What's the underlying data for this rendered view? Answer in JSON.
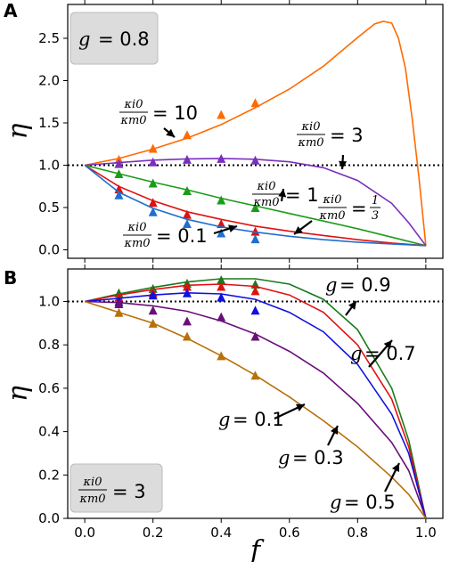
{
  "panel_a": {
    "letter": "A",
    "legend_box": {
      "g_symbol": "g",
      "equals": "=",
      "value": "0.8"
    }
  },
  "panel_b": {
    "letter": "B",
    "legend_box": {
      "ratio_num": "κi0",
      "ratio_den": "κm0",
      "equals": "=",
      "value": "3"
    }
  },
  "chart_data": [
    {
      "type": "line",
      "panel": "A",
      "xlabel": "",
      "ylabel": "η",
      "xlim": [
        -0.05,
        1.05
      ],
      "ylim": [
        -0.1,
        2.9
      ],
      "xticks": [
        0.0,
        0.2,
        0.4,
        0.6,
        0.8,
        1.0
      ],
      "yticks": [
        0.0,
        0.5,
        1.0,
        1.5,
        2.0,
        2.5
      ],
      "yticklabels": [
        "0.0",
        "0.5",
        "1.0",
        "1.5",
        "2.0",
        "2.5"
      ],
      "reference_line": {
        "y": 1.0,
        "style": "dotted"
      },
      "series": [
        {
          "name": "κi0/κm0 = 10",
          "color": "#ff6a00",
          "x": [
            0,
            0.1,
            0.2,
            0.3,
            0.4,
            0.5,
            0.6,
            0.7,
            0.8,
            0.85,
            0.875,
            0.9,
            0.92,
            0.94,
            0.96,
            0.98,
            1.0
          ],
          "y": [
            1.0,
            1.08,
            1.19,
            1.32,
            1.48,
            1.68,
            1.9,
            2.17,
            2.51,
            2.67,
            2.7,
            2.68,
            2.5,
            2.15,
            1.55,
            0.85,
            0.05
          ],
          "markers": {
            "x": [
              0.1,
              0.2,
              0.3,
              0.4,
              0.5
            ],
            "y": [
              1.07,
              1.2,
              1.36,
              1.6,
              1.74
            ]
          }
        },
        {
          "name": "κi0/κm0 = 3",
          "color": "#7b2fbe",
          "x": [
            0,
            0.1,
            0.2,
            0.3,
            0.4,
            0.5,
            0.6,
            0.7,
            0.8,
            0.9,
            0.95,
            1.0
          ],
          "y": [
            1.0,
            1.03,
            1.06,
            1.075,
            1.08,
            1.07,
            1.04,
            0.97,
            0.82,
            0.55,
            0.32,
            0.05
          ],
          "markers": {
            "x": [
              0.1,
              0.2,
              0.3,
              0.4,
              0.5
            ],
            "y": [
              1.02,
              1.04,
              1.07,
              1.08,
              1.06
            ]
          }
        },
        {
          "name": "κi0/κm0 = 1",
          "color": "#1a9c1a",
          "x": [
            0,
            0.1,
            0.2,
            0.3,
            0.4,
            0.5,
            0.6,
            0.7,
            0.8,
            0.9,
            1.0
          ],
          "y": [
            1.0,
            0.9,
            0.8,
            0.71,
            0.61,
            0.52,
            0.43,
            0.34,
            0.25,
            0.15,
            0.05
          ],
          "markers": {
            "x": [
              0.1,
              0.2,
              0.3,
              0.4,
              0.5
            ],
            "y": [
              0.9,
              0.79,
              0.7,
              0.59,
              0.5
            ]
          }
        },
        {
          "name": "κi0/κm0 = 1/3",
          "color": "#e01010",
          "x": [
            0,
            0.1,
            0.2,
            0.3,
            0.4,
            0.5,
            0.6,
            0.7,
            0.8,
            0.9,
            1.0
          ],
          "y": [
            1.0,
            0.75,
            0.58,
            0.45,
            0.36,
            0.28,
            0.22,
            0.17,
            0.12,
            0.08,
            0.05
          ],
          "markers": {
            "x": [
              0.1,
              0.2,
              0.3,
              0.4,
              0.5
            ],
            "y": [
              0.72,
              0.56,
              0.42,
              0.31,
              0.22
            ]
          }
        },
        {
          "name": "κi0/κm0 = 0.1",
          "color": "#1f6fd0",
          "x": [
            0,
            0.1,
            0.2,
            0.3,
            0.4,
            0.5,
            0.6,
            0.7,
            0.8,
            0.9,
            1.0
          ],
          "y": [
            1.0,
            0.68,
            0.49,
            0.36,
            0.27,
            0.21,
            0.16,
            0.12,
            0.09,
            0.07,
            0.05
          ],
          "markers": {
            "x": [
              0.1,
              0.2,
              0.3,
              0.4,
              0.5
            ],
            "y": [
              0.65,
              0.45,
              0.31,
              0.2,
              0.13
            ]
          }
        }
      ],
      "annotations": [
        {
          "num": "κi0",
          "den": "κm0",
          "rest": "= 10",
          "series": 0
        },
        {
          "num": "κi0",
          "den": "κm0",
          "rest": "= 3",
          "series": 1
        },
        {
          "num": "κi0",
          "den": "κm0",
          "rest": "= 1",
          "series": 2
        },
        {
          "num": "κi0",
          "den": "κm0",
          "rest": "=",
          "frac_num": "1",
          "frac_den": "3",
          "series": 3
        },
        {
          "num": "κi0",
          "den": "κm0",
          "rest": "= 0.1",
          "series": 4
        }
      ]
    },
    {
      "type": "line",
      "panel": "B",
      "xlabel": "f",
      "ylabel": "η",
      "xlim": [
        -0.05,
        1.05
      ],
      "ylim": [
        0.0,
        1.15
      ],
      "xticks": [
        0.0,
        0.2,
        0.4,
        0.6,
        0.8,
        1.0
      ],
      "xticklabels": [
        "0.0",
        "0.2",
        "0.4",
        "0.6",
        "0.8",
        "1.0"
      ],
      "yticks": [
        0.0,
        0.2,
        0.4,
        0.6,
        0.8,
        1.0
      ],
      "yticklabels": [
        "0.0",
        "0.2",
        "0.4",
        "0.6",
        "0.8",
        "1.0"
      ],
      "reference_line": {
        "y": 1.0,
        "style": "dotted"
      },
      "series": [
        {
          "name": "g = 0.9",
          "color": "#1a7a1a",
          "x": [
            0,
            0.1,
            0.2,
            0.3,
            0.4,
            0.5,
            0.6,
            0.7,
            0.8,
            0.9,
            0.95,
            1.0
          ],
          "y": [
            1.0,
            1.035,
            1.065,
            1.09,
            1.105,
            1.105,
            1.08,
            1.01,
            0.87,
            0.6,
            0.36,
            0.0
          ],
          "markers": {
            "x": [
              0.1,
              0.2,
              0.3,
              0.4,
              0.5
            ],
            "y": [
              1.04,
              1.06,
              1.085,
              1.1,
              1.08
            ]
          }
        },
        {
          "name": "g = 0.7",
          "color": "#e01010",
          "x": [
            0,
            0.1,
            0.2,
            0.3,
            0.4,
            0.5,
            0.6,
            0.7,
            0.8,
            0.9,
            0.95,
            1.0
          ],
          "y": [
            1.0,
            1.03,
            1.055,
            1.075,
            1.08,
            1.07,
            1.03,
            0.95,
            0.8,
            0.55,
            0.33,
            0.0
          ],
          "markers": {
            "x": [
              0.1,
              0.2,
              0.3,
              0.4,
              0.5
            ],
            "y": [
              1.02,
              1.04,
              1.07,
              1.07,
              1.05
            ]
          }
        },
        {
          "name": "g = 0.5",
          "color": "#1010e0",
          "x": [
            0,
            0.1,
            0.2,
            0.3,
            0.4,
            0.5,
            0.6,
            0.7,
            0.8,
            0.9,
            0.95,
            1.0
          ],
          "y": [
            1.0,
            1.015,
            1.03,
            1.04,
            1.035,
            1.01,
            0.95,
            0.86,
            0.71,
            0.48,
            0.3,
            0.0
          ],
          "markers": {
            "x": [
              0.1,
              0.2,
              0.3,
              0.4,
              0.5
            ],
            "y": [
              1.0,
              1.03,
              1.04,
              1.02,
              0.96
            ]
          }
        },
        {
          "name": "g = 0.3",
          "color": "#6a0f7a",
          "x": [
            0,
            0.1,
            0.2,
            0.3,
            0.4,
            0.5,
            0.6,
            0.7,
            0.8,
            0.9,
            0.95,
            1.0
          ],
          "y": [
            1.0,
            0.995,
            0.98,
            0.955,
            0.91,
            0.85,
            0.77,
            0.67,
            0.53,
            0.35,
            0.22,
            0.0
          ],
          "markers": {
            "x": [
              0.1,
              0.2,
              0.3,
              0.4,
              0.5
            ],
            "y": [
              0.99,
              0.96,
              0.91,
              0.93,
              0.84
            ]
          }
        },
        {
          "name": "g = 0.1",
          "color": "#b8700a",
          "x": [
            0,
            0.1,
            0.2,
            0.3,
            0.4,
            0.5,
            0.6,
            0.7,
            0.8,
            0.9,
            0.95,
            1.0
          ],
          "y": [
            1.0,
            0.95,
            0.9,
            0.83,
            0.75,
            0.66,
            0.56,
            0.45,
            0.33,
            0.19,
            0.11,
            0.0
          ],
          "markers": {
            "x": [
              0.1,
              0.2,
              0.3,
              0.4,
              0.5
            ],
            "y": [
              0.95,
              0.9,
              0.84,
              0.75,
              0.66
            ]
          }
        }
      ],
      "annotations": [
        {
          "g": "g",
          "rest": "= 0.9",
          "series": 0
        },
        {
          "g": "g",
          "rest": "= 0.7",
          "series": 1
        },
        {
          "g": "g",
          "rest": "= 0.1",
          "series": 4
        },
        {
          "g": "g",
          "rest": "= 0.3",
          "series": 3
        },
        {
          "g": "g",
          "rest": "= 0.5",
          "series": 2
        }
      ]
    }
  ]
}
